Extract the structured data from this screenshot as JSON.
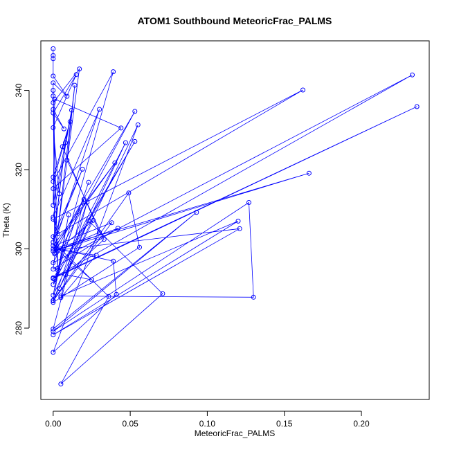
{
  "chart_data": {
    "type": "line",
    "title": "ATOM1 Southbound MeteoricFrac_PALMS",
    "xlabel": "MeteoricFrac_PALMS",
    "ylabel": "Theta (K)",
    "xlim": [
      -0.008,
      0.244
    ],
    "ylim": [
      262.0,
      352.5
    ],
    "x_ticks": [
      0.0,
      0.05,
      0.1,
      0.15,
      0.2
    ],
    "x_tick_labels": [
      "0.00",
      "0.05",
      "0.10",
      "0.15",
      "0.20"
    ],
    "y_ticks": [
      280,
      300,
      320,
      340
    ],
    "y_tick_labels": [
      "280",
      "300",
      "320",
      "340"
    ],
    "grid": false,
    "markers": "open-circle",
    "series": [
      {
        "color": "#0000ff",
        "points": [
          [
            0.0,
            350.5
          ],
          [
            0.0,
            348.8
          ],
          [
            0.0,
            348.0
          ],
          [
            0.0,
            343.6
          ],
          [
            0.009,
            338.5
          ],
          [
            0.0,
            341.9
          ],
          [
            0.0,
            338.6
          ],
          [
            0.0,
            336.9
          ],
          [
            0.017,
            345.4
          ],
          [
            0.001,
            298.7
          ],
          [
            0.0,
            340.0
          ],
          [
            0.003,
            295.1
          ],
          [
            0.0,
            335.2
          ],
          [
            0.007,
            330.3
          ],
          [
            0.0,
            334.3
          ],
          [
            0.015,
            344.0
          ],
          [
            0.0,
            330.6
          ],
          [
            0.004,
            313.9
          ],
          [
            0.0,
            318.1
          ],
          [
            0.011,
            332.1
          ],
          [
            0.0,
            317.0
          ],
          [
            0.039,
            344.7
          ],
          [
            0.003,
            294.6
          ],
          [
            0.0,
            315.2
          ],
          [
            0.044,
            330.5
          ],
          [
            0.001,
            337.8
          ],
          [
            0.0,
            311.0
          ],
          [
            0.012,
            335.0
          ],
          [
            0.0,
            308.0
          ],
          [
            0.03,
            335.2
          ],
          [
            0.003,
            303.8
          ],
          [
            0.0,
            307.5
          ],
          [
            0.162,
            340.1
          ],
          [
            0.0,
            303.1
          ],
          [
            0.019,
            320.1
          ],
          [
            0.0,
            301.7
          ],
          [
            0.008,
            326.8
          ],
          [
            0.0,
            300.8
          ],
          [
            0.04,
            321.7
          ],
          [
            0.0,
            300.0
          ],
          [
            0.166,
            319.1
          ],
          [
            0.0,
            299.4
          ],
          [
            0.053,
            334.7
          ],
          [
            0.0,
            296.5
          ],
          [
            0.233,
            343.9
          ],
          [
            0.0,
            292.7
          ],
          [
            0.236,
            335.9
          ],
          [
            0.0,
            292.5
          ],
          [
            0.053,
            327.1
          ],
          [
            0.001,
            292.3
          ],
          [
            0.023,
            316.8
          ],
          [
            0.0,
            291.0
          ],
          [
            0.047,
            326.8
          ],
          [
            0.0,
            288.3
          ],
          [
            0.01,
            308.6
          ],
          [
            0.0,
            287.0
          ],
          [
            0.049,
            314.1
          ],
          [
            0.056,
            300.4
          ],
          [
            0.0,
            286.5
          ],
          [
            0.022,
            311.8
          ],
          [
            0.0,
            279.8
          ],
          [
            0.093,
            309.2
          ],
          [
            0.0,
            279.2
          ],
          [
            0.127,
            311.7
          ],
          [
            0.13,
            287.8
          ],
          [
            0.005,
            288.1
          ],
          [
            0.12,
            307.0
          ],
          [
            0.0,
            278.3
          ],
          [
            0.121,
            305.1
          ],
          [
            0.006,
            299.8
          ],
          [
            0.039,
            296.9
          ],
          [
            0.041,
            288.5
          ],
          [
            0.0,
            273.9
          ],
          [
            0.055,
            331.3
          ],
          [
            0.0,
            286.9
          ],
          [
            0.038,
            306.6
          ],
          [
            0.002,
            301.0
          ],
          [
            0.036,
            288.0
          ],
          [
            0.005,
            265.9
          ],
          [
            0.071,
            288.7
          ],
          [
            0.023,
            307.1
          ],
          [
            0.004,
            290.0
          ],
          [
            0.026,
            307.2
          ],
          [
            0.001,
            299.0
          ],
          [
            0.02,
            312.5
          ],
          [
            0.005,
            287.7
          ],
          [
            0.028,
            298.4
          ],
          [
            0.002,
            299.9
          ],
          [
            0.025,
            292.2
          ],
          [
            0.008,
            293.5
          ],
          [
            0.033,
            302.4
          ],
          [
            0.009,
            322.4
          ],
          [
            0.014,
            341.3
          ],
          [
            0.0,
            294.9
          ],
          [
            0.042,
            305.2
          ],
          [
            0.003,
            299.7
          ],
          [
            0.03,
            304.2
          ],
          [
            0.006,
            325.8
          ]
        ]
      }
    ]
  }
}
